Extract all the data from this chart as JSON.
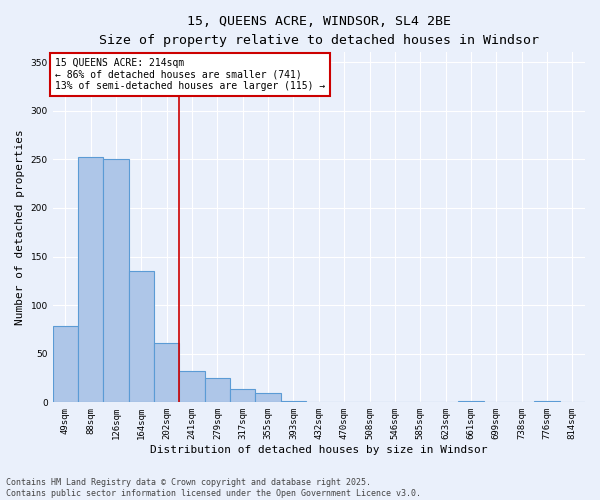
{
  "title_line1": "15, QUEENS ACRE, WINDSOR, SL4 2BE",
  "title_line2": "Size of property relative to detached houses in Windsor",
  "xlabel": "Distribution of detached houses by size in Windsor",
  "ylabel": "Number of detached properties",
  "categories": [
    "49sqm",
    "88sqm",
    "126sqm",
    "164sqm",
    "202sqm",
    "241sqm",
    "279sqm",
    "317sqm",
    "355sqm",
    "393sqm",
    "432sqm",
    "470sqm",
    "508sqm",
    "546sqm",
    "585sqm",
    "623sqm",
    "661sqm",
    "699sqm",
    "738sqm",
    "776sqm",
    "814sqm"
  ],
  "values": [
    79,
    252,
    250,
    135,
    61,
    32,
    25,
    14,
    10,
    1,
    0,
    0,
    0,
    0,
    0,
    0,
    1,
    0,
    0,
    1,
    0
  ],
  "bar_color": "#aec6e8",
  "bar_edge_color": "#5b9bd5",
  "bar_linewidth": 0.8,
  "vline_x_index": 4.5,
  "vline_color": "#cc0000",
  "annotation_text": "15 QUEENS ACRE: 214sqm\n← 86% of detached houses are smaller (741)\n13% of semi-detached houses are larger (115) →",
  "annotation_box_color": "#ffffff",
  "annotation_box_edge": "#cc0000",
  "ylim": [
    0,
    360
  ],
  "yticks": [
    0,
    50,
    100,
    150,
    200,
    250,
    300,
    350
  ],
  "bg_color": "#eaf0fb",
  "plot_bg_color": "#eaf0fb",
  "footer_line1": "Contains HM Land Registry data © Crown copyright and database right 2025.",
  "footer_line2": "Contains public sector information licensed under the Open Government Licence v3.0.",
  "title_fontsize": 9.5,
  "subtitle_fontsize": 8.5,
  "tick_fontsize": 6.5,
  "xlabel_fontsize": 8,
  "ylabel_fontsize": 8,
  "annotation_fontsize": 7,
  "footer_fontsize": 6
}
